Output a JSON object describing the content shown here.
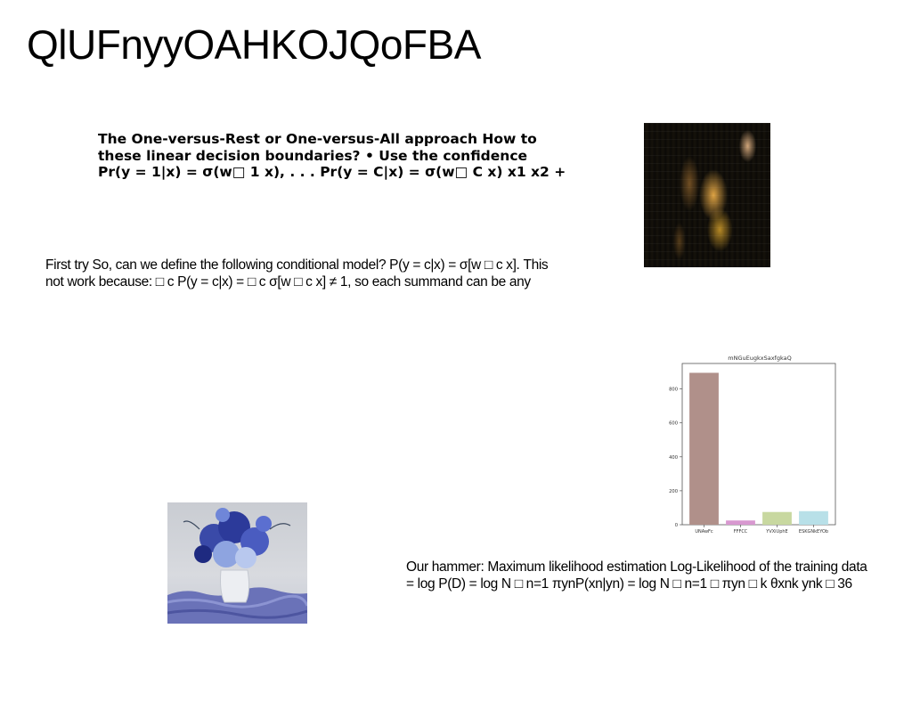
{
  "title": "QlUFnyyOAHKOJQoFBA",
  "bold_block": {
    "lines": [
      "The One-versus-Rest or One-versus-All approach How to",
      "these linear decision boundaries? • Use the confidence",
      "Pr(y = 1|x) = σ(w□ 1 x), . . . Pr(y = C|x) = σ(w□ C x) x1 x2 +"
    ]
  },
  "paragraph_1": {
    "lines": [
      "First try So, can we define the following conditional model? P(y = c|x) = σ[w □ c x]. This",
      "not work because: □ c P(y = c|x) = □ c σ[w □ c x] ≠ 1, so each summand can be any"
    ]
  },
  "paragraph_2": {
    "lines": [
      "Our hammer: Maximum likelihood estimation Log-Likelihood of the training data",
      "= log P(D) = log N □ n=1 πynP(xn|yn) = log N □ n=1 □ πyn □ k θxnk ynk □ 36"
    ]
  },
  "chart_data": {
    "type": "bar",
    "title": "mNGuEugkxSaxfgkaQ",
    "categories": [
      "UNAwFc",
      "FFFCC",
      "YVXiUphE",
      "ESKGNkEYOb"
    ],
    "values": [
      895,
      25,
      75,
      80
    ],
    "ylim": [
      0,
      950
    ],
    "yticks": [
      0,
      200,
      400,
      600,
      800
    ],
    "xlabel": "",
    "ylabel": "",
    "grid": false,
    "colors": [
      "#b0908a",
      "#d898d0",
      "#c8d8a0",
      "#b8e0e8"
    ]
  }
}
